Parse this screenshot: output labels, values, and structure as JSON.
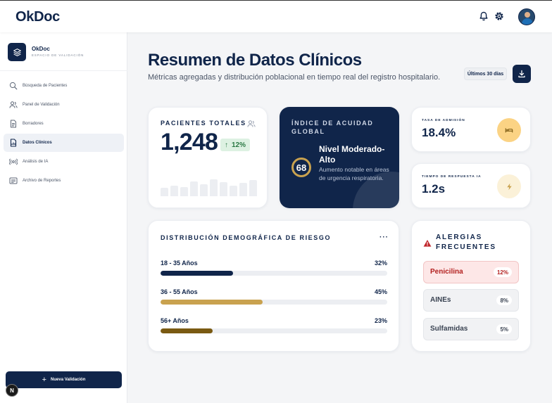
{
  "app": {
    "brand": "OkDoc"
  },
  "header": {
    "icons": [
      "bell-icon",
      "gear-icon"
    ],
    "avatar": "user-avatar"
  },
  "sidebar": {
    "workspace": {
      "name": "OkDoc",
      "subtitle": "ESPACIO DE VALIDACIÓN"
    },
    "items": [
      {
        "label": "Búsqueda de Pacientes",
        "icon": "search-icon",
        "active": false
      },
      {
        "label": "Panel de Validación",
        "icon": "users-icon",
        "active": false
      },
      {
        "label": "Borradores",
        "icon": "document-icon",
        "active": false
      },
      {
        "label": "Datos Clínicos",
        "icon": "document-chart-icon",
        "active": true
      },
      {
        "label": "Análisis de IA",
        "icon": "ai-sensor-icon",
        "active": false
      },
      {
        "label": "Archivo de Reportes",
        "icon": "archive-icon",
        "active": false
      }
    ],
    "new_button": "Nueva Validación",
    "badge": "N"
  },
  "main": {
    "title": "Resumen de Datos Clínicos",
    "subtitle": "Métricas agregadas y distribución poblacional en tiempo real del registro hospitalario.",
    "range_button": "Últimos 30 días"
  },
  "patients": {
    "label": "PACIENTES TOTALES",
    "value": "1,248",
    "change": "12%",
    "trend_bars": [
      0.35,
      0.45,
      0.38,
      0.62,
      0.5,
      0.7,
      0.6,
      0.45,
      0.55,
      0.68
    ]
  },
  "acuity": {
    "label": "ÍNDICE DE ACUIDAD GLOBAL",
    "score": "68",
    "level": "Nivel Moderado-Alto",
    "description": "Aumento notable en áreas de urgencia respiratoria."
  },
  "admission": {
    "label": "TASA DE ADMISIÓN",
    "value": "18.4%",
    "icon": "bed-icon",
    "accent": "#fbd384"
  },
  "response": {
    "label": "TIEMPO DE RESPUESTA IA",
    "value": "1.2s",
    "icon": "lightning-icon",
    "accent": "#fbf1d8"
  },
  "demographics": {
    "title": "DISTRIBUCIÓN DEMOGRÁFICA DE RIESGO",
    "more": "···",
    "rows": [
      {
        "label": "18 - 35 Años",
        "pct": "32%",
        "value": 32,
        "color": "#10254a"
      },
      {
        "label": "36 - 55 Años",
        "pct": "45%",
        "value": 45,
        "color": "#c9a24f"
      },
      {
        "label": "56+ Años",
        "pct": "23%",
        "value": 23,
        "color": "#7a5a12"
      }
    ]
  },
  "allergies": {
    "title": "ALERGIAS FRECUENTES",
    "items": [
      {
        "name": "Penicilina",
        "pct": "12%",
        "highlight": true
      },
      {
        "name": "AINEs",
        "pct": "8%",
        "highlight": false
      },
      {
        "name": "Sulfamidas",
        "pct": "5%",
        "highlight": false
      }
    ]
  }
}
